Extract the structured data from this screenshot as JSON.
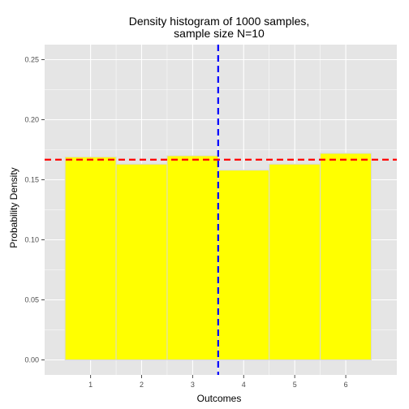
{
  "chart_data": {
    "type": "bar",
    "title_lines": [
      "Density histogram of 1000 samples,",
      "sample size N=10"
    ],
    "xlabel": "Outcomes",
    "ylabel": "Probability Density",
    "categories": [
      1,
      2,
      3,
      4,
      5,
      6
    ],
    "x_ticks": [
      "1",
      "2",
      "3",
      "4",
      "5",
      "6"
    ],
    "values": [
      0.169,
      0.163,
      0.17,
      0.158,
      0.163,
      0.172
    ],
    "y_ticks": [
      "0.00",
      "0.05",
      "0.10",
      "0.15",
      "0.20",
      "0.25"
    ],
    "y_tick_values": [
      0,
      0.05,
      0.1,
      0.15,
      0.2,
      0.25
    ],
    "xlim": [
      0.1,
      7.0
    ],
    "ylim": [
      -0.0125,
      0.2625
    ],
    "hline": 0.1667,
    "vline": 3.5,
    "grid": true,
    "colors": {
      "bar_fill": "#ffff00",
      "bar_outline": "#d9d9d9",
      "panel_bg": "#e5e5e5",
      "grid": "#ffffff",
      "hline": "#ff0000",
      "vline": "#0000ff"
    }
  }
}
